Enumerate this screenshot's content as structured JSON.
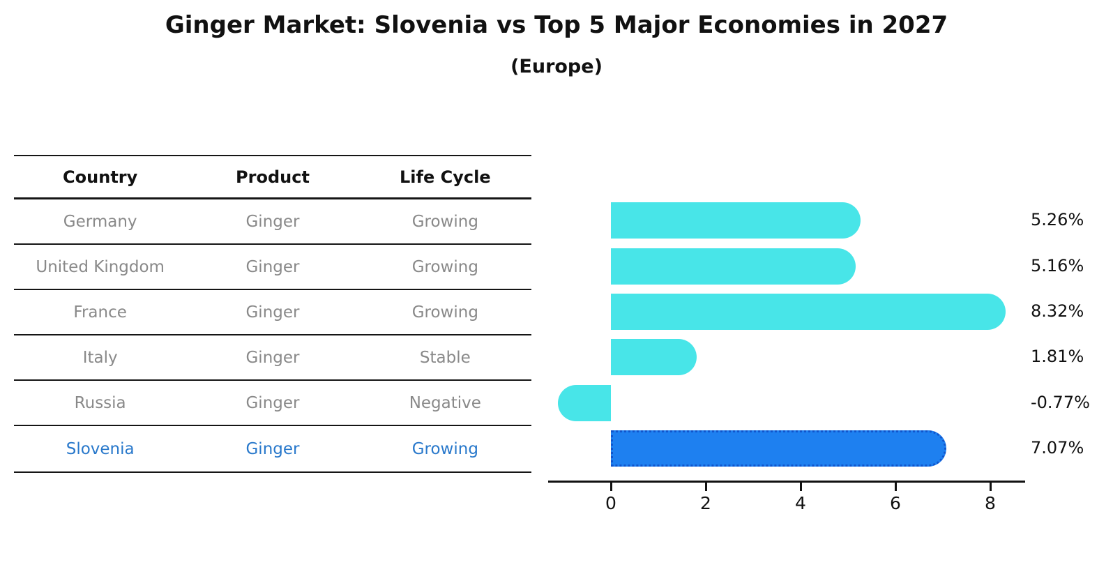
{
  "title": "Ginger Market: Slovenia vs Top 5 Major Economies in 2027",
  "subtitle": "(Europe)",
  "table": {
    "headers": [
      "Country",
      "Product",
      "Life Cycle"
    ],
    "rows": [
      {
        "country": "Germany",
        "product": "Ginger",
        "life_cycle": "Growing",
        "highlight": false
      },
      {
        "country": "United Kingdom",
        "product": "Ginger",
        "life_cycle": "Growing",
        "highlight": false
      },
      {
        "country": "France",
        "product": "Ginger",
        "life_cycle": "Growing",
        "highlight": false
      },
      {
        "country": "Italy",
        "product": "Ginger",
        "life_cycle": "Stable",
        "highlight": false
      },
      {
        "country": "Russia",
        "product": "Ginger",
        "life_cycle": "Negative",
        "highlight": false
      },
      {
        "country": "Slovenia",
        "product": "Ginger",
        "life_cycle": "Growing",
        "highlight": true
      }
    ]
  },
  "chart_data": {
    "type": "bar",
    "orientation": "horizontal",
    "categories": [
      "Germany",
      "United Kingdom",
      "France",
      "Italy",
      "Russia",
      "Slovenia"
    ],
    "values": [
      5.26,
      5.16,
      8.32,
      1.81,
      -0.77,
      7.07
    ],
    "value_labels": [
      "5.26%",
      "5.16%",
      "8.32%",
      "1.81%",
      "-0.77%",
      "7.07%"
    ],
    "x_ticks": [
      "0",
      "2",
      "4",
      "6",
      "8"
    ],
    "x_tick_values": [
      0,
      2,
      4,
      6,
      8
    ],
    "xlim": [
      -1.3,
      8.8
    ],
    "grid": false,
    "highlight_index": 5
  },
  "colors": {
    "bar": "#48E5E8",
    "highlight_bar": "#1E80F0",
    "highlight_border": "#1055CC",
    "highlight_text": "#2878CB",
    "row_text": "#898989",
    "ink": "#111111"
  }
}
